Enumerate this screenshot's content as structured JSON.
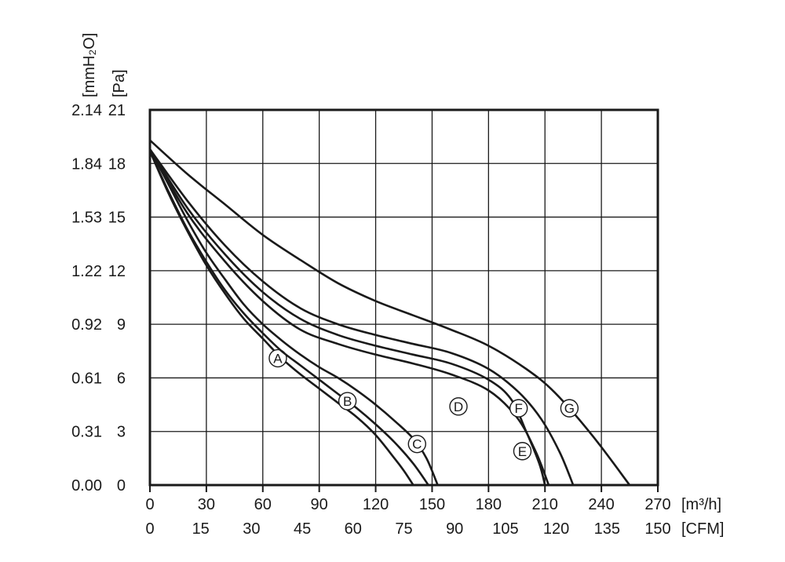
{
  "chart_data": {
    "type": "line",
    "title": "",
    "axes": {
      "x_primary": {
        "unit_label": "[m³/h]",
        "range": [
          0,
          270
        ],
        "ticks": [
          "0",
          "30",
          "60",
          "90",
          "120",
          "150",
          "180",
          "210",
          "240",
          "270"
        ]
      },
      "x_secondary": {
        "unit_label": "[CFM]",
        "range": [
          0,
          150
        ],
        "ticks": [
          "0",
          "15",
          "30",
          "45",
          "60",
          "75",
          "90",
          "105",
          "120",
          "135",
          "150"
        ]
      },
      "y_primary": {
        "unit_label": "[Pa]",
        "range": [
          0,
          21
        ],
        "ticks": [
          "0",
          "3",
          "6",
          "9",
          "12",
          "15",
          "18",
          "21"
        ]
      },
      "y_secondary": {
        "unit_label": "[mmH₂O]",
        "range": [
          0,
          2.14
        ],
        "ticks": [
          "0.00",
          "0.31",
          "0.61",
          "0.92",
          "1.22",
          "1.53",
          "1.84",
          "2.14"
        ]
      }
    },
    "grid": true,
    "series": [
      {
        "name": "A",
        "label_at": [
          68,
          7.1
        ],
        "points": [
          [
            0,
            18.7
          ],
          [
            10,
            16.3
          ],
          [
            20,
            14.2
          ],
          [
            30,
            12.3
          ],
          [
            40,
            10.7
          ],
          [
            50,
            9.3
          ],
          [
            60,
            8.2
          ],
          [
            70,
            7.1
          ],
          [
            80,
            6.2
          ],
          [
            90,
            5.4
          ],
          [
            100,
            4.6
          ],
          [
            110,
            3.8
          ],
          [
            120,
            2.8
          ],
          [
            130,
            1.5
          ],
          [
            135,
            0.8
          ],
          [
            140,
            0
          ]
        ]
      },
      {
        "name": "B",
        "label_at": [
          105,
          4.7
        ],
        "points": [
          [
            0,
            18.7
          ],
          [
            10,
            16.4
          ],
          [
            20,
            14.3
          ],
          [
            30,
            12.5
          ],
          [
            40,
            10.9
          ],
          [
            50,
            9.6
          ],
          [
            60,
            8.5
          ],
          [
            70,
            7.5
          ],
          [
            80,
            6.7
          ],
          [
            90,
            5.9
          ],
          [
            100,
            5.1
          ],
          [
            110,
            4.3
          ],
          [
            120,
            3.4
          ],
          [
            130,
            2.4
          ],
          [
            140,
            1.2
          ],
          [
            148,
            0
          ]
        ]
      },
      {
        "name": "C",
        "label_at": [
          142,
          2.3
        ],
        "points": [
          [
            0,
            18.8
          ],
          [
            10,
            16.8
          ],
          [
            20,
            14.8
          ],
          [
            30,
            13.0
          ],
          [
            40,
            11.5
          ],
          [
            50,
            10.1
          ],
          [
            60,
            9.0
          ],
          [
            70,
            8.1
          ],
          [
            80,
            7.3
          ],
          [
            90,
            6.6
          ],
          [
            100,
            6.0
          ],
          [
            110,
            5.3
          ],
          [
            120,
            4.5
          ],
          [
            130,
            3.6
          ],
          [
            140,
            2.6
          ],
          [
            147,
            1.5
          ],
          [
            153,
            0
          ]
        ]
      },
      {
        "name": "D",
        "label_at": [
          164,
          4.4
        ],
        "points": [
          [
            0,
            18.8
          ],
          [
            20,
            15.2
          ],
          [
            40,
            12.5
          ],
          [
            60,
            10.3
          ],
          [
            80,
            8.7
          ],
          [
            100,
            7.9
          ],
          [
            120,
            7.3
          ],
          [
            140,
            6.8
          ],
          [
            160,
            6.2
          ],
          [
            180,
            5.3
          ],
          [
            195,
            3.8
          ],
          [
            205,
            1.9
          ],
          [
            212,
            0
          ]
        ]
      },
      {
        "name": "E",
        "label_at": [
          198,
          1.9
        ],
        "points": [
          [
            0,
            18.8
          ],
          [
            20,
            15.5
          ],
          [
            40,
            12.9
          ],
          [
            60,
            10.8
          ],
          [
            80,
            9.3
          ],
          [
            100,
            8.4
          ],
          [
            120,
            7.8
          ],
          [
            140,
            7.3
          ],
          [
            160,
            6.8
          ],
          [
            180,
            5.9
          ],
          [
            192,
            4.8
          ],
          [
            200,
            3.0
          ],
          [
            207,
            1.2
          ],
          [
            210,
            0
          ]
        ]
      },
      {
        "name": "F",
        "label_at": [
          196,
          4.3
        ],
        "points": [
          [
            0,
            18.8
          ],
          [
            20,
            15.9
          ],
          [
            40,
            13.4
          ],
          [
            60,
            11.4
          ],
          [
            80,
            9.9
          ],
          [
            100,
            9.0
          ],
          [
            120,
            8.4
          ],
          [
            140,
            7.9
          ],
          [
            160,
            7.4
          ],
          [
            180,
            6.5
          ],
          [
            196,
            5.2
          ],
          [
            208,
            3.7
          ],
          [
            218,
            1.8
          ],
          [
            225,
            0
          ]
        ]
      },
      {
        "name": "G",
        "label_at": [
          223,
          4.3
        ],
        "points": [
          [
            0,
            19.3
          ],
          [
            20,
            17.4
          ],
          [
            40,
            15.7
          ],
          [
            60,
            14.0
          ],
          [
            80,
            12.6
          ],
          [
            100,
            11.3
          ],
          [
            120,
            10.3
          ],
          [
            140,
            9.5
          ],
          [
            160,
            8.7
          ],
          [
            180,
            7.8
          ],
          [
            200,
            6.5
          ],
          [
            215,
            5.2
          ],
          [
            235,
            2.8
          ],
          [
            255,
            0
          ]
        ]
      }
    ]
  }
}
